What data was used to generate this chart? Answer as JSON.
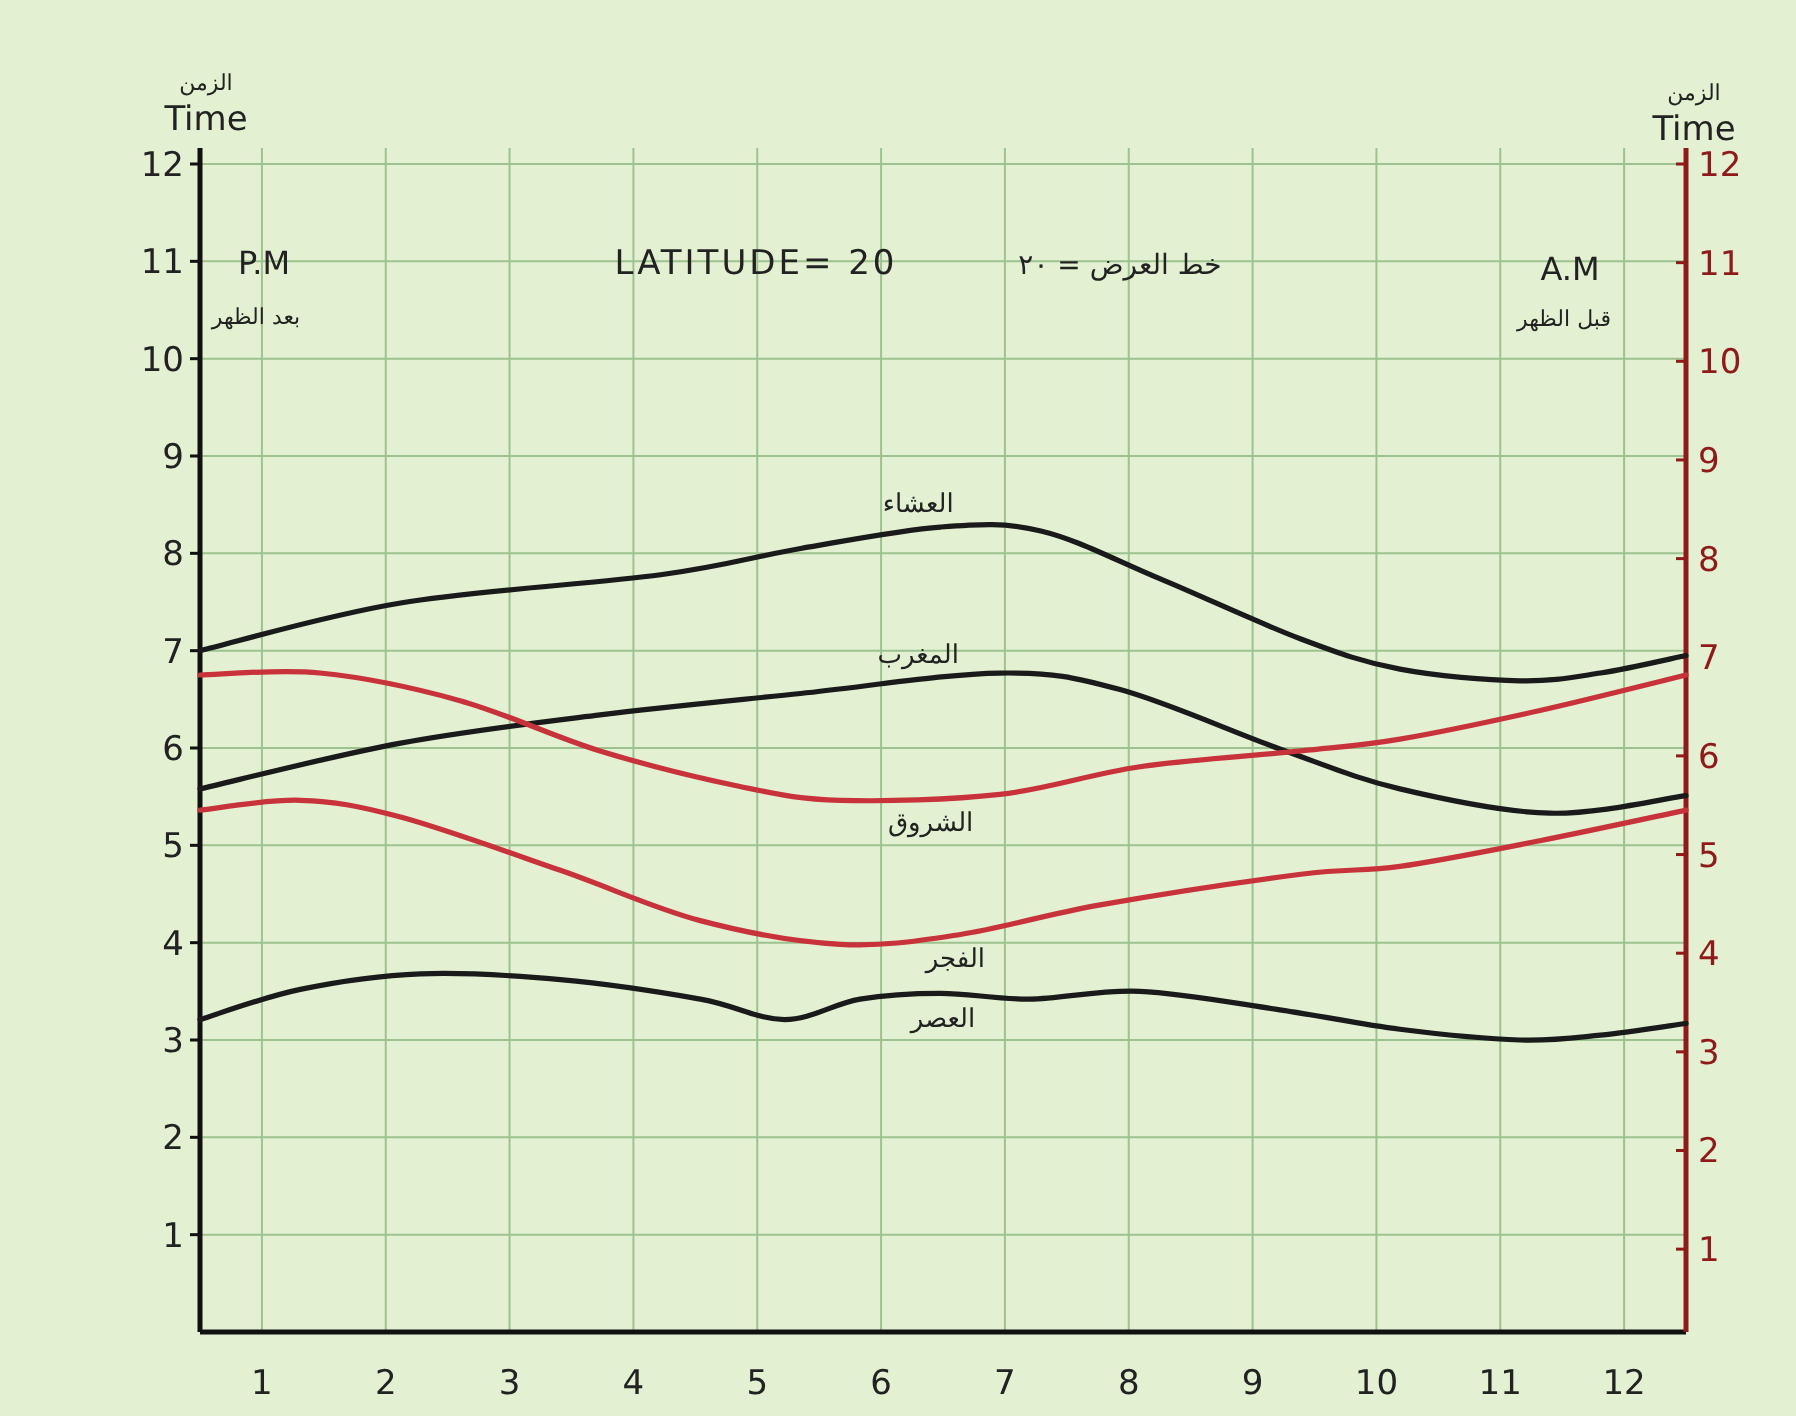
{
  "chart_data": {
    "type": "line",
    "title": "LATITUDE= 20",
    "ylabel": "Time",
    "y2label": "Time",
    "annotations": [
      "الزمن",
      "الزمن",
      "P.M",
      "بعد الظهر",
      "A.M",
      "قبل الظهر",
      "خط العرض = ٢٠"
    ],
    "xlim": [
      0.5,
      12.5
    ],
    "xticks": [
      1,
      2,
      3,
      4,
      5,
      6,
      7,
      8,
      9,
      10,
      11,
      12
    ],
    "ylim": [
      0,
      12
    ],
    "yticks": [
      1,
      2,
      3,
      4,
      5,
      6,
      7,
      8,
      9,
      10,
      11,
      12
    ],
    "y2lim": [
      0.16,
      12
    ],
    "y2ticks": [
      1,
      2,
      3,
      4,
      5,
      6,
      7,
      8,
      9,
      10,
      11,
      12
    ],
    "grid": true,
    "legend": false,
    "series": [
      {
        "name": "العشاء",
        "color": "#1a1a1a",
        "x": [
          0.5,
          2.12,
          4.22,
          5.35,
          6.48,
          7.29,
          8.25,
          9.39,
          10.19,
          11.16,
          11.81,
          12.5
        ],
        "values": [
          7.0,
          7.49,
          7.78,
          8.05,
          8.27,
          8.23,
          7.74,
          7.12,
          6.81,
          6.69,
          6.77,
          6.95
        ]
      },
      {
        "name": "المغرب",
        "color": "#1a1a1a",
        "x": [
          0.5,
          2.12,
          3.73,
          5.35,
          6.96,
          7.93,
          9.22,
          10.19,
          11.4,
          12.5
        ],
        "values": [
          5.58,
          6.05,
          6.34,
          6.56,
          6.77,
          6.6,
          5.99,
          5.58,
          5.33,
          5.51
        ]
      },
      {
        "name": "الشروق",
        "color": "#c8323a",
        "axis": "y2",
        "x": [
          0.5,
          1.47,
          2.6,
          3.73,
          4.86,
          5.67,
          6.96,
          8.09,
          9.39,
          10.19,
          11.32,
          12.5
        ],
        "values": [
          6.82,
          6.84,
          6.56,
          6.05,
          5.69,
          5.55,
          5.61,
          5.89,
          6.05,
          6.17,
          6.46,
          6.82
        ]
      },
      {
        "name": "الفجر",
        "color": "#c8323a",
        "axis": "y2",
        "x": [
          0.5,
          1.31,
          2.12,
          3.41,
          4.54,
          5.67,
          6.64,
          7.77,
          9.39,
          10.19,
          11.32,
          12.5
        ],
        "values": [
          5.45,
          5.55,
          5.38,
          4.84,
          4.33,
          4.09,
          4.19,
          4.49,
          4.8,
          4.88,
          5.14,
          5.45
        ]
      },
      {
        "name": "العصر",
        "color": "#1a1a1a",
        "x": [
          0.5,
          1.31,
          2.28,
          3.41,
          4.54,
          5.22,
          5.83,
          6.48,
          7.2,
          8.09,
          9.22,
          10.19,
          11.16,
          11.81,
          12.5
        ],
        "values": [
          3.21,
          3.52,
          3.68,
          3.62,
          3.42,
          3.21,
          3.42,
          3.48,
          3.42,
          3.5,
          3.31,
          3.11,
          3.0,
          3.05,
          3.17
        ]
      }
    ]
  }
}
